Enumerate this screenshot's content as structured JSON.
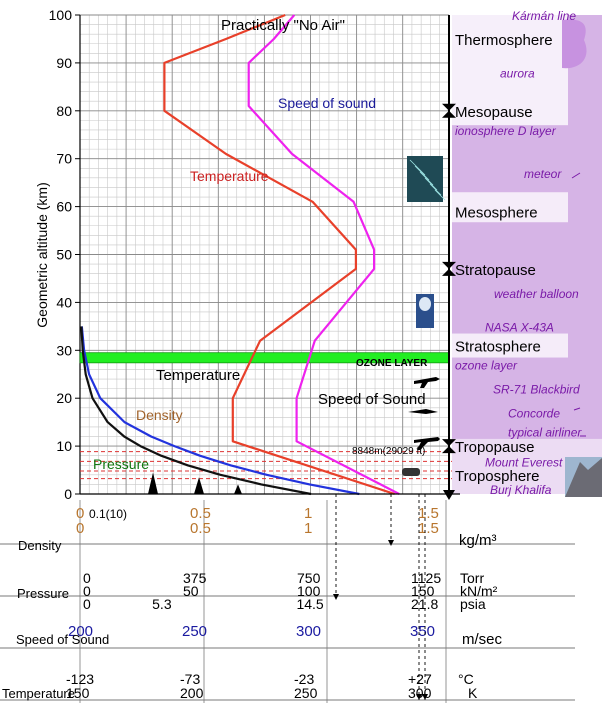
{
  "chart_data": {
    "type": "line",
    "ylabel": "Geometric altitude (km)",
    "ylim": [
      0,
      100
    ],
    "yticks": [
      0,
      10,
      20,
      30,
      40,
      50,
      60,
      70,
      80,
      90,
      100
    ],
    "grid": true,
    "labels": {
      "practically_no_air": "Practically \"No Air\"",
      "speed_of_sound_top": "Speed of sound",
      "temperature_top": "Temperature",
      "temperature_low": "Temperature",
      "speed_of_sound_low": "Speed of Sound",
      "density": "Density",
      "pressure": "Pressure",
      "ozone_layer": "OZONE LAYER",
      "everest_height": "8848m(29029 ft)"
    },
    "layers": [
      {
        "name": "Thermosphere",
        "altitude": 95
      },
      {
        "name": "Mesopause",
        "altitude": 80
      },
      {
        "name": "Mesosphere",
        "altitude": 59
      },
      {
        "name": "Stratopause",
        "altitude": 47
      },
      {
        "name": "Stratosphere",
        "altitude": 31
      },
      {
        "name": "Tropopause",
        "altitude": 10
      },
      {
        "name": "Troposphere",
        "altitude": 4
      }
    ],
    "features": [
      {
        "name": "Kármán line",
        "altitude": 100
      },
      {
        "name": "aurora",
        "altitude": 88
      },
      {
        "name": "ionosphere D layer",
        "altitude": 76
      },
      {
        "name": "meteor",
        "altitude": 67
      },
      {
        "name": "weather balloon",
        "altitude": 42
      },
      {
        "name": "NASA X-43A",
        "altitude": 35
      },
      {
        "name": "ozone layer",
        "altitude": 27
      },
      {
        "name": "SR-71 Blackbird",
        "altitude": 22
      },
      {
        "name": "Concorde",
        "altitude": 17
      },
      {
        "name": "typical airliner",
        "altitude": 13
      },
      {
        "name": "Mount Everest",
        "altitude": 6.8
      },
      {
        "name": "Burj Khalifa",
        "altitude": 1
      }
    ],
    "series": [
      {
        "key": "temperature",
        "color": "#e8402a",
        "points": [
          [
            0,
            288
          ],
          [
            11,
            217
          ],
          [
            20,
            217
          ],
          [
            32,
            229
          ],
          [
            47,
            271
          ],
          [
            51,
            271
          ],
          [
            61,
            252
          ],
          [
            71,
            214
          ],
          [
            80,
            187
          ],
          [
            90,
            187
          ],
          [
            95,
            214
          ],
          [
            100,
            240
          ]
        ]
      },
      {
        "key": "speed_of_sound",
        "color": "#ee22ee",
        "points": [
          [
            0,
            340
          ],
          [
            11,
            295
          ],
          [
            20,
            295
          ],
          [
            32,
            303
          ],
          [
            47,
            329
          ],
          [
            51,
            329
          ],
          [
            61,
            320
          ],
          [
            71,
            293
          ],
          [
            81,
            274
          ],
          [
            90,
            274
          ],
          [
            95,
            285
          ],
          [
            100,
            294
          ]
        ]
      },
      {
        "key": "density",
        "color": "#2233dd",
        "points": [
          [
            0,
            1.225
          ],
          [
            2,
            1.007
          ],
          [
            4,
            0.819
          ],
          [
            6,
            0.66
          ],
          [
            8,
            0.526
          ],
          [
            10,
            0.414
          ],
          [
            12,
            0.312
          ],
          [
            15,
            0.195
          ],
          [
            20,
            0.089
          ],
          [
            25,
            0.04
          ],
          [
            30,
            0.018
          ],
          [
            35,
            0.008
          ]
        ]
      },
      {
        "key": "pressure",
        "color": "#111111",
        "points": [
          [
            0,
            101.3
          ],
          [
            2,
            79.5
          ],
          [
            4,
            61.6
          ],
          [
            6,
            47.2
          ],
          [
            8,
            35.6
          ],
          [
            10,
            26.5
          ],
          [
            12,
            19.4
          ],
          [
            15,
            12.1
          ],
          [
            20,
            5.5
          ],
          [
            25,
            2.5
          ],
          [
            30,
            1.2
          ],
          [
            35,
            0.6
          ]
        ]
      }
    ],
    "scales": [
      {
        "label": "Density",
        "unit": "kg/m³",
        "color": "#b8762e",
        "ticks": [
          [
            "0",
            0
          ],
          [
            "0.1(10)",
            0.1
          ],
          [
            "0.5",
            0.5
          ],
          [
            "1",
            1
          ],
          [
            "1.5",
            1.5
          ]
        ],
        "ticks2": [
          [
            "0",
            0
          ],
          [
            "0.5",
            0.5
          ],
          [
            "1",
            1
          ],
          [
            "1.5",
            1.5
          ]
        ]
      },
      {
        "label": "Pressure",
        "unit_torr": "Torr",
        "unit_kn": "kN/m²",
        "unit_psia": "psia",
        "torr": [
          [
            "0",
            0
          ],
          [
            "375",
            375
          ],
          [
            "750",
            750
          ],
          [
            "1125",
            1125
          ]
        ],
        "kn": [
          [
            "0",
            0
          ],
          [
            "50",
            50
          ],
          [
            "100",
            100
          ],
          [
            "150",
            150
          ]
        ],
        "psia": [
          [
            "0",
            0
          ],
          [
            "5.3",
            5.3
          ],
          [
            "14.5",
            14.5
          ],
          [
            "21.8",
            21.8
          ]
        ]
      },
      {
        "label": "Speed of Sound",
        "unit": "m/sec",
        "color": "#1a1aa0",
        "ticks": [
          [
            "200",
            200
          ],
          [
            "250",
            250
          ],
          [
            "300",
            300
          ],
          [
            "350",
            350
          ]
        ]
      },
      {
        "label": "Temperature",
        "unit_c": "°C",
        "unit_k": "K",
        "celsius": [
          [
            "-123",
            150
          ],
          [
            "-73",
            200
          ],
          [
            "-23",
            250
          ],
          [
            "+27",
            300
          ]
        ],
        "kelvin": [
          [
            "150",
            150
          ],
          [
            "200",
            200
          ],
          [
            "250",
            250
          ],
          [
            "300",
            300
          ]
        ]
      }
    ]
  }
}
